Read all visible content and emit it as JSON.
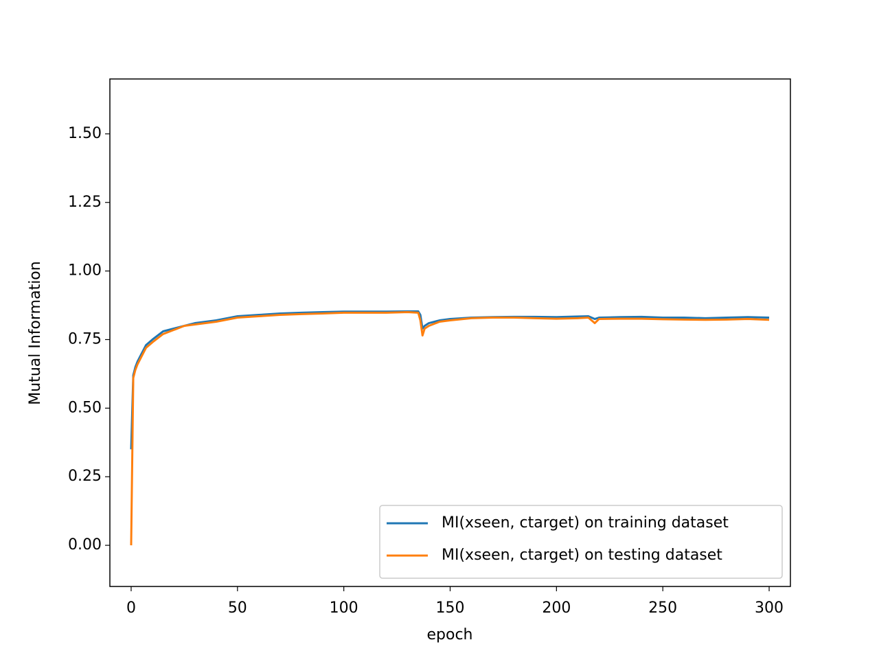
{
  "chart_data": {
    "type": "line",
    "xlabel": "epoch",
    "ylabel": "Mutual Information",
    "x": [
      0,
      1,
      2,
      3,
      5,
      7,
      10,
      15,
      20,
      25,
      30,
      40,
      50,
      60,
      70,
      80,
      90,
      100,
      110,
      120,
      130,
      135,
      136,
      137,
      138,
      140,
      145,
      150,
      160,
      170,
      180,
      190,
      200,
      210,
      215,
      218,
      220,
      230,
      240,
      250,
      260,
      270,
      280,
      290,
      300
    ],
    "series": [
      {
        "name": "MI(xseen, ctarget) on training dataset",
        "color": "#1f77b4",
        "values": [
          0.35,
          0.62,
          0.65,
          0.67,
          0.7,
          0.73,
          0.75,
          0.78,
          0.79,
          0.8,
          0.81,
          0.82,
          0.835,
          0.84,
          0.845,
          0.848,
          0.85,
          0.852,
          0.852,
          0.852,
          0.853,
          0.853,
          0.84,
          0.79,
          0.8,
          0.81,
          0.82,
          0.825,
          0.83,
          0.832,
          0.833,
          0.833,
          0.832,
          0.834,
          0.835,
          0.825,
          0.83,
          0.832,
          0.833,
          0.83,
          0.83,
          0.828,
          0.83,
          0.832,
          0.83
        ]
      },
      {
        "name": "MI(xseen, ctarget) on testing dataset",
        "color": "#ff7f0e",
        "values": [
          0.0,
          0.61,
          0.64,
          0.66,
          0.69,
          0.72,
          0.74,
          0.77,
          0.785,
          0.8,
          0.805,
          0.815,
          0.83,
          0.835,
          0.84,
          0.843,
          0.845,
          0.848,
          0.848,
          0.848,
          0.85,
          0.848,
          0.82,
          0.765,
          0.79,
          0.8,
          0.815,
          0.82,
          0.828,
          0.83,
          0.83,
          0.828,
          0.826,
          0.828,
          0.83,
          0.81,
          0.825,
          0.826,
          0.826,
          0.824,
          0.823,
          0.822,
          0.823,
          0.825,
          0.822
        ]
      }
    ],
    "xlim": [
      -10,
      310
    ],
    "ylim": [
      -0.15,
      1.7
    ],
    "xticks": [
      0,
      50,
      100,
      150,
      200,
      250,
      300
    ],
    "yticks": [
      {
        "value": 0,
        "label": "0.00"
      },
      {
        "value": 0.25,
        "label": "0.25"
      },
      {
        "value": 0.5,
        "label": "0.50"
      },
      {
        "value": 0.75,
        "label": "0.75"
      },
      {
        "value": 1,
        "label": "1.00"
      },
      {
        "value": 1.25,
        "label": "1.25"
      },
      {
        "value": 1.5,
        "label": "1.50"
      }
    ],
    "legend": "lower right"
  }
}
